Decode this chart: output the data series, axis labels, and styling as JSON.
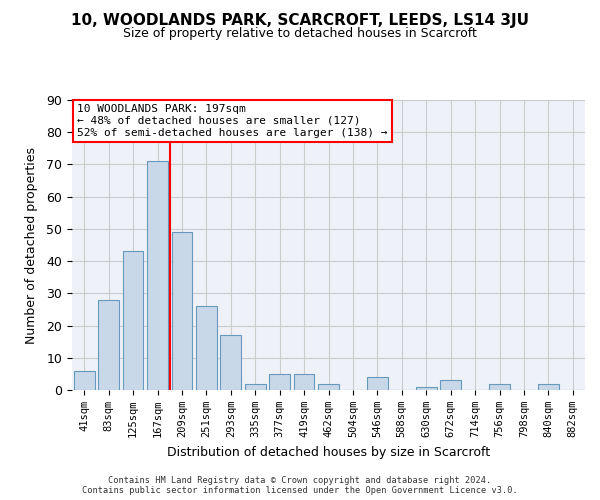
{
  "title1": "10, WOODLANDS PARK, SCARCROFT, LEEDS, LS14 3JU",
  "title2": "Size of property relative to detached houses in Scarcroft",
  "xlabel": "Distribution of detached houses by size in Scarcroft",
  "ylabel": "Number of detached properties",
  "bar_values": [
    6,
    28,
    43,
    71,
    49,
    26,
    17,
    2,
    5,
    5,
    2,
    0,
    4,
    0,
    1,
    3,
    0,
    2,
    0,
    2,
    0
  ],
  "bar_labels": [
    "41sqm",
    "83sqm",
    "125sqm",
    "167sqm",
    "209sqm",
    "251sqm",
    "293sqm",
    "335sqm",
    "377sqm",
    "419sqm",
    "462sqm",
    "504sqm",
    "546sqm",
    "588sqm",
    "630sqm",
    "672sqm",
    "714sqm",
    "756sqm",
    "798sqm",
    "840sqm",
    "882sqm"
  ],
  "bar_color": "#c8d8e8",
  "bar_edge_color": "#6699bb",
  "grid_color": "#cccccc",
  "bg_color": "#eef2f8",
  "vline_color": "red",
  "annotation_line1": "10 WOODLANDS PARK: 197sqm",
  "annotation_line2": "← 48% of detached houses are smaller (127)",
  "annotation_line3": "52% of semi-detached houses are larger (138) →",
  "ylim": [
    0,
    90
  ],
  "yticks": [
    0,
    10,
    20,
    30,
    40,
    50,
    60,
    70,
    80,
    90
  ],
  "footer1": "Contains HM Land Registry data © Crown copyright and database right 2024.",
  "footer2": "Contains public sector information licensed under the Open Government Licence v3.0."
}
